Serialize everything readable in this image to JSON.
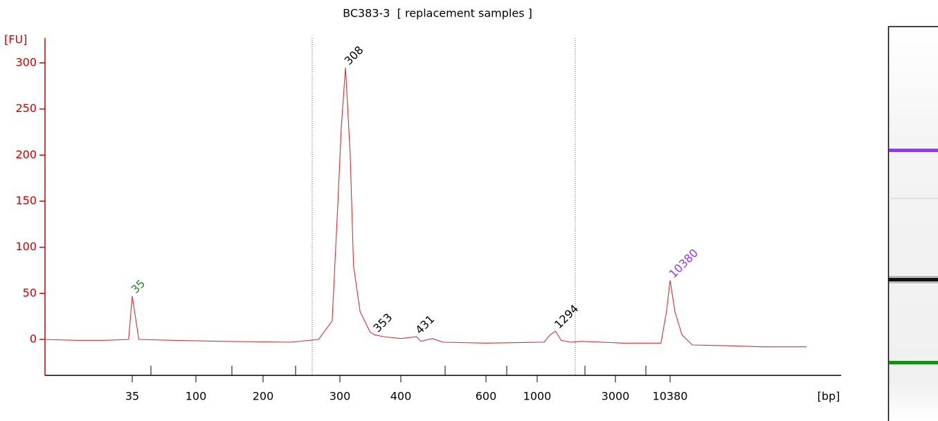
{
  "chart_data": {
    "type": "line",
    "title": "BC383-3  [ replacement samples ]",
    "y_label": "[FU]",
    "x_label": "[bp]",
    "axis_color": "#cc0000",
    "ylim": [
      -39,
      327
    ],
    "yticks": [
      0,
      50,
      100,
      150,
      200,
      250,
      300
    ],
    "xticks": [
      35,
      100,
      200,
      300,
      400,
      600,
      1000,
      3000,
      10380
    ],
    "series": [
      {
        "name": "BC383-3",
        "color": "#cc3333",
        "x": [
          8,
          14,
          22,
          33,
          35,
          39,
          69,
          130,
          231,
          268,
          288,
          297,
          302,
          308,
          315,
          320,
          330,
          346,
          353,
          369,
          401,
          431,
          440,
          465,
          489,
          600,
          1039,
          1100,
          1200,
          1294,
          1400,
          1600,
          1862,
          3566,
          8437,
          9556,
          10380,
          11590,
          13578,
          17170,
          43900,
          82400,
          229000
        ],
        "values": [
          0,
          -1,
          -1,
          0,
          47,
          0,
          -1,
          -2,
          -3,
          0,
          20,
          150,
          230,
          295,
          200,
          80,
          30,
          8,
          5,
          3,
          1,
          3,
          -2,
          1,
          -3,
          -4,
          -3,
          -3,
          5,
          9,
          -1,
          -3,
          -2,
          -4,
          -4,
          30,
          64,
          30,
          5,
          -6,
          -7,
          -8,
          -8
        ]
      }
    ],
    "annotations": [
      {
        "text": "35",
        "x": 35,
        "y": 47,
        "color": "#228b22"
      },
      {
        "text": "308",
        "x": 308,
        "y": 295,
        "color": "#000000"
      },
      {
        "text": "353",
        "x": 353,
        "y": 5,
        "color": "#000000"
      },
      {
        "text": "431",
        "x": 431,
        "y": 3,
        "color": "#000000"
      },
      {
        "text": "1294",
        "x": 1294,
        "y": 9,
        "color": "#000000"
      },
      {
        "text": "10380",
        "x": 10380,
        "y": 64,
        "color": "#9b30ff"
      }
    ]
  }
}
